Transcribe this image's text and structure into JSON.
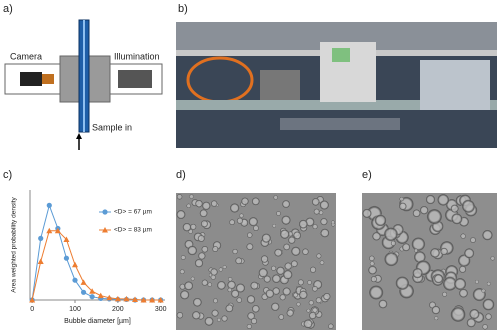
{
  "panels": {
    "a": {
      "label": "a)",
      "camera": "Camera",
      "illumination": "Illumination",
      "sample_in": "Sample in"
    },
    "b": {
      "label": "b)"
    },
    "c": {
      "label": "c)"
    },
    "d": {
      "label": "d)"
    },
    "e": {
      "label": "e)"
    }
  },
  "chart_data": {
    "type": "line",
    "x_label": "Bubble diameter [µm]",
    "y_label": "Area weighted probability density",
    "x": [
      0,
      20,
      40,
      60,
      80,
      100,
      120,
      140,
      160,
      180,
      200,
      220,
      240,
      260,
      280,
      300
    ],
    "series": [
      {
        "name": "<D> = 67 µm",
        "color": "#5b9bd5",
        "marker": "circle",
        "values": [
          0.0,
          0.56,
          0.86,
          0.65,
          0.38,
          0.18,
          0.07,
          0.03,
          0.015,
          0.01,
          0.005,
          0.005,
          0.0,
          0.0,
          0.0,
          0.0
        ]
      },
      {
        "name": "<D> = 83 µm",
        "color": "#ed7d31",
        "marker": "triangle",
        "values": [
          0.0,
          0.35,
          0.63,
          0.63,
          0.55,
          0.32,
          0.16,
          0.08,
          0.04,
          0.02,
          0.01,
          0.01,
          0.005,
          0.0,
          0.0,
          0.0
        ]
      }
    ],
    "xlim": [
      -5,
      310
    ],
    "ylim": [
      0,
      1
    ],
    "xticks": [
      0,
      100,
      200,
      300
    ],
    "legend": "upper right"
  }
}
